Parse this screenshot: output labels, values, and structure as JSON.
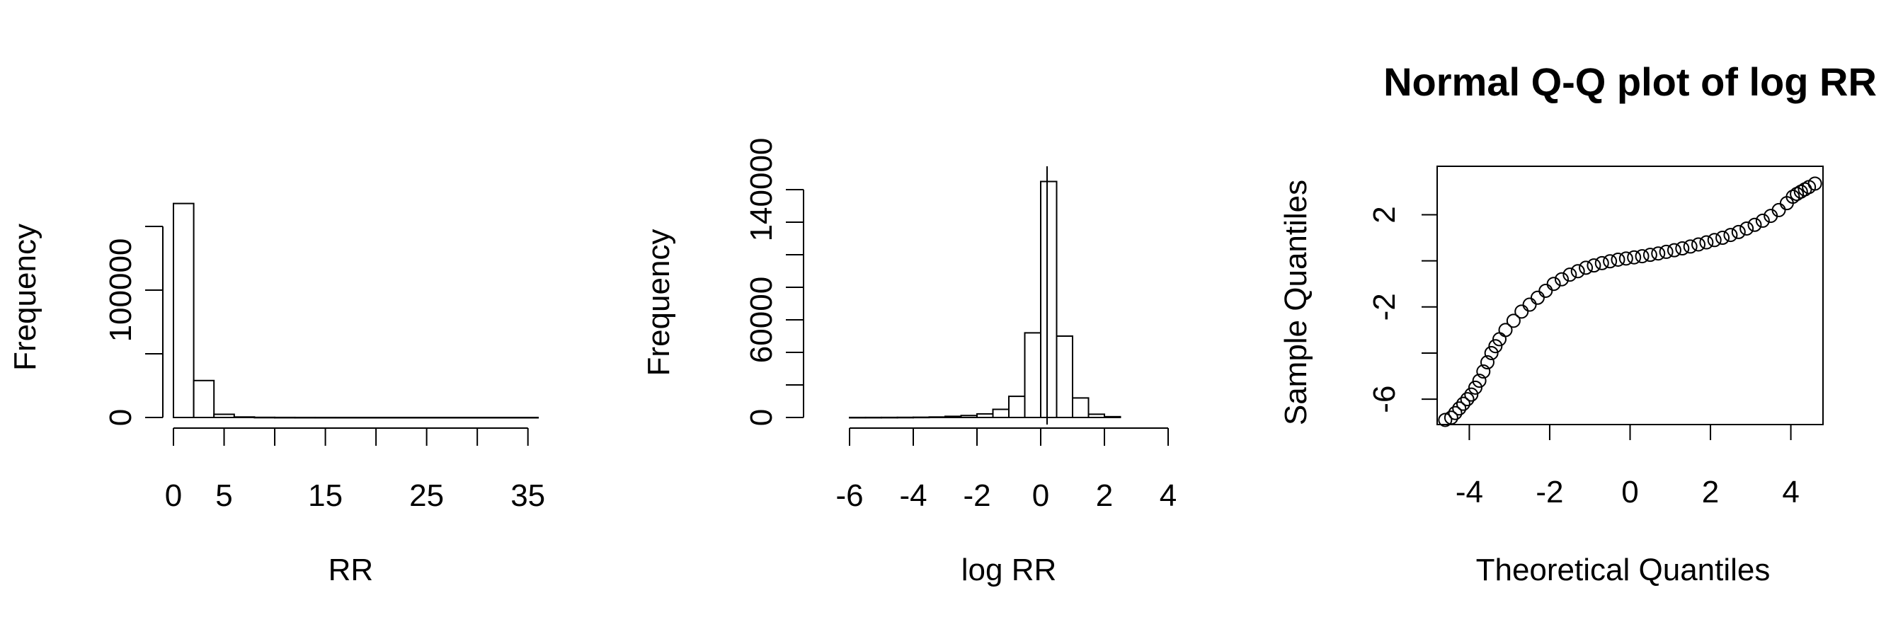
{
  "chart_data": [
    {
      "type": "bar",
      "title": "",
      "xlabel": "RR",
      "ylabel": "Frequency",
      "xlim": [
        0,
        36
      ],
      "ylim": [
        0,
        200000
      ],
      "x_ticks": [
        0,
        5,
        10,
        15,
        20,
        25,
        30,
        35
      ],
      "x_tick_labels": [
        "0",
        "5",
        "",
        "15",
        "",
        "25",
        "",
        "35"
      ],
      "y_ticks": [
        0,
        50000,
        100000,
        150000
      ],
      "y_tick_labels": [
        "0",
        "",
        "100000",
        ""
      ],
      "bins": [
        {
          "x0": 0,
          "x1": 2,
          "count": 168000
        },
        {
          "x0": 2,
          "x1": 4,
          "count": 29000
        },
        {
          "x0": 4,
          "x1": 6,
          "count": 2500
        },
        {
          "x0": 6,
          "x1": 8,
          "count": 400
        },
        {
          "x0": 8,
          "x1": 10,
          "count": 100
        },
        {
          "x0": 10,
          "x1": 12,
          "count": 40
        },
        {
          "x0": 12,
          "x1": 14,
          "count": 15
        },
        {
          "x0": 14,
          "x1": 16,
          "count": 8
        },
        {
          "x0": 16,
          "x1": 18,
          "count": 4
        },
        {
          "x0": 18,
          "x1": 20,
          "count": 2
        },
        {
          "x0": 20,
          "x1": 22,
          "count": 1
        },
        {
          "x0": 22,
          "x1": 24,
          "count": 1
        },
        {
          "x0": 24,
          "x1": 26,
          "count": 1
        },
        {
          "x0": 26,
          "x1": 28,
          "count": 1
        },
        {
          "x0": 28,
          "x1": 30,
          "count": 1
        },
        {
          "x0": 30,
          "x1": 32,
          "count": 1
        },
        {
          "x0": 32,
          "x1": 34,
          "count": 1
        },
        {
          "x0": 34,
          "x1": 36,
          "count": 1
        }
      ]
    },
    {
      "type": "bar",
      "title": "",
      "xlabel": "log RR",
      "ylabel": "Frequency",
      "xlim": [
        -7,
        4
      ],
      "ylim": [
        0,
        150000
      ],
      "x_ticks": [
        -6,
        -4,
        -2,
        0,
        2,
        4
      ],
      "x_tick_labels": [
        "-6",
        "-4",
        "-2",
        "0",
        "2",
        "4"
      ],
      "y_ticks": [
        0,
        20000,
        40000,
        60000,
        80000,
        100000,
        120000,
        140000
      ],
      "y_tick_labels": [
        "0",
        "",
        "",
        "60000",
        "",
        "",
        "",
        "140000"
      ],
      "vertical_line_x": 0.2,
      "bins": [
        {
          "x0": -6,
          "x1": -5.5,
          "count": 20
        },
        {
          "x0": -5.5,
          "x1": -5,
          "count": 30
        },
        {
          "x0": -5,
          "x1": -4.5,
          "count": 50
        },
        {
          "x0": -4.5,
          "x1": -4,
          "count": 80
        },
        {
          "x0": -4,
          "x1": -3.5,
          "count": 150
        },
        {
          "x0": -3.5,
          "x1": -3,
          "count": 300
        },
        {
          "x0": -3,
          "x1": -2.5,
          "count": 700
        },
        {
          "x0": -2.5,
          "x1": -2,
          "count": 1200
        },
        {
          "x0": -2,
          "x1": -1.5,
          "count": 2200
        },
        {
          "x0": -1.5,
          "x1": -1,
          "count": 5000
        },
        {
          "x0": -1,
          "x1": -0.5,
          "count": 13000
        },
        {
          "x0": -0.5,
          "x1": 0,
          "count": 52000
        },
        {
          "x0": 0,
          "x1": 0.5,
          "count": 145000
        },
        {
          "x0": 0.5,
          "x1": 1,
          "count": 50000
        },
        {
          "x0": 1,
          "x1": 1.5,
          "count": 12000
        },
        {
          "x0": 1.5,
          "x1": 2,
          "count": 2000
        },
        {
          "x0": 2,
          "x1": 2.5,
          "count": 500
        }
      ]
    },
    {
      "type": "scatter",
      "title": "Normal Q-Q plot of log RR",
      "xlabel": "Theoretical Quantiles",
      "ylabel": "Sample Quantiles",
      "xlim": [
        -4.8,
        4.8
      ],
      "ylim": [
        -7.1,
        4.1
      ],
      "x_ticks": [
        -4,
        -2,
        0,
        2,
        4
      ],
      "x_tick_labels": [
        "-4",
        "-2",
        "0",
        "2",
        "4"
      ],
      "y_ticks": [
        -6,
        -4,
        -2,
        0,
        2
      ],
      "y_tick_labels": [
        "-6",
        "",
        "-2",
        "",
        "2"
      ],
      "points": [
        [
          -4.6,
          -6.9
        ],
        [
          -4.45,
          -6.8
        ],
        [
          -4.35,
          -6.6
        ],
        [
          -4.25,
          -6.4
        ],
        [
          -4.15,
          -6.2
        ],
        [
          -4.05,
          -6.0
        ],
        [
          -3.95,
          -5.8
        ],
        [
          -3.85,
          -5.5
        ],
        [
          -3.75,
          -5.2
        ],
        [
          -3.65,
          -4.8
        ],
        [
          -3.55,
          -4.4
        ],
        [
          -3.45,
          -4.0
        ],
        [
          -3.35,
          -3.7
        ],
        [
          -3.25,
          -3.4
        ],
        [
          -3.1,
          -3.0
        ],
        [
          -2.9,
          -2.6
        ],
        [
          -2.7,
          -2.2
        ],
        [
          -2.5,
          -1.9
        ],
        [
          -2.3,
          -1.6
        ],
        [
          -2.1,
          -1.3
        ],
        [
          -1.9,
          -1.0
        ],
        [
          -1.7,
          -0.8
        ],
        [
          -1.5,
          -0.6
        ],
        [
          -1.3,
          -0.45
        ],
        [
          -1.1,
          -0.3
        ],
        [
          -0.9,
          -0.2
        ],
        [
          -0.7,
          -0.1
        ],
        [
          -0.5,
          -0.02
        ],
        [
          -0.3,
          0.05
        ],
        [
          -0.1,
          0.1
        ],
        [
          0.1,
          0.15
        ],
        [
          0.3,
          0.2
        ],
        [
          0.5,
          0.26
        ],
        [
          0.7,
          0.32
        ],
        [
          0.9,
          0.39
        ],
        [
          1.1,
          0.46
        ],
        [
          1.3,
          0.54
        ],
        [
          1.5,
          0.62
        ],
        [
          1.7,
          0.71
        ],
        [
          1.9,
          0.8
        ],
        [
          2.1,
          0.9
        ],
        [
          2.3,
          1.0
        ],
        [
          2.5,
          1.12
        ],
        [
          2.7,
          1.25
        ],
        [
          2.9,
          1.4
        ],
        [
          3.1,
          1.56
        ],
        [
          3.3,
          1.74
        ],
        [
          3.5,
          1.95
        ],
        [
          3.7,
          2.2
        ],
        [
          3.9,
          2.5
        ],
        [
          4.05,
          2.78
        ],
        [
          4.15,
          2.9
        ],
        [
          4.25,
          3.0
        ],
        [
          4.35,
          3.1
        ],
        [
          4.45,
          3.2
        ],
        [
          4.6,
          3.35
        ]
      ]
    }
  ]
}
